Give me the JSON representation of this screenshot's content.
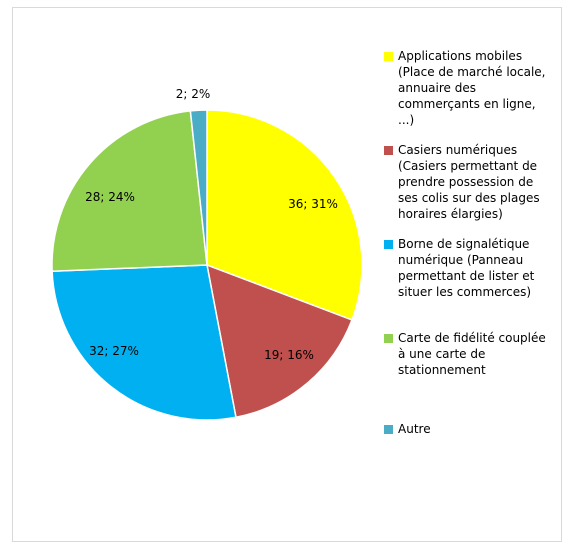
{
  "chart_data": {
    "type": "pie",
    "slices": [
      {
        "name": "Applications mobiles\n(Place de marché locale,\nannuaire des\ncommerçants en ligne,\n...)",
        "value": 36,
        "percent": 31,
        "label": "36; 31%",
        "color": "#ffff00"
      },
      {
        "name": "Casiers numériques\n(Casiers permettant de\nprendre possession de\nses colis sur des plages\nhoraires élargies)",
        "value": 19,
        "percent": 16,
        "label": "19; 16%",
        "color": "#c0504d"
      },
      {
        "name": "Borne de signalétique\nnumérique (Panneau\npermettant de lister et\nsituer les commerces)",
        "value": 32,
        "percent": 27,
        "label": "32; 27%",
        "color": "#00b0f0"
      },
      {
        "name": "Carte de fidélité couplée\nà une carte de\nstationnement",
        "value": 28,
        "percent": 24,
        "label": "28; 24%",
        "color": "#92d050"
      },
      {
        "name": "Autre",
        "value": 2,
        "percent": 2,
        "label": "2; 2%",
        "color": "#4bacc6"
      }
    ],
    "legend": "right"
  }
}
